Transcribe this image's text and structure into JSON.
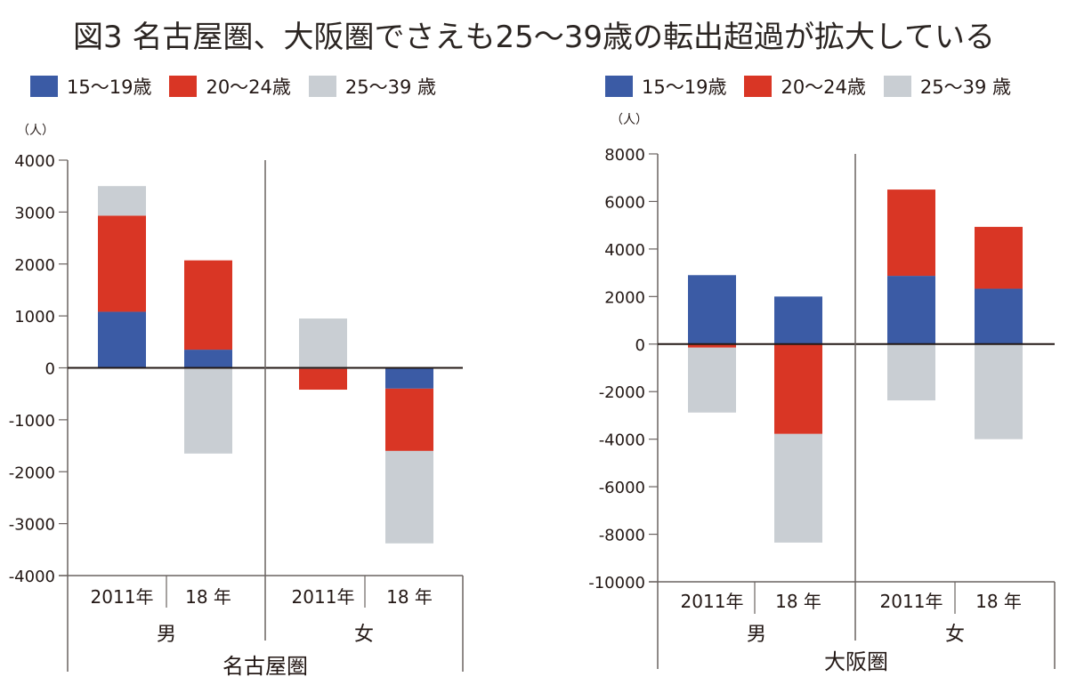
{
  "title": "図3 名古屋圏、大阪圏でさえも25〜39歳の転出超過が拡大している",
  "legend": [
    {
      "label": "15〜19歳",
      "color": "#3b5ba5"
    },
    {
      "label": "20〜24歳",
      "color": "#d93625"
    },
    {
      "label": "25〜39 歳",
      "color": "#c9ced3"
    }
  ],
  "chart_data": [
    {
      "type": "bar",
      "stacked": true,
      "title": "名古屋圏",
      "xlabel": "名古屋圏",
      "ylabel": "（人）",
      "ylim": [
        -4000,
        4000
      ],
      "yticks": [
        4000,
        3000,
        2000,
        1000,
        0,
        -1000,
        -2000,
        -3000,
        -4000
      ],
      "ytick_labels": [
        "4000",
        "3000",
        "2000",
        "1000",
        "0",
        "-1000",
        "-2000",
        "-3000",
        "-4000"
      ],
      "groups": [
        "男",
        "女"
      ],
      "categories": [
        "2011年",
        "18 年",
        "2011年",
        "18 年"
      ],
      "category_groups": [
        0,
        0,
        1,
        1
      ],
      "series": [
        {
          "name": "15〜19歳",
          "color": "#3b5ba5",
          "values": [
            1080,
            350,
            -20,
            -400
          ]
        },
        {
          "name": "20〜24歳",
          "color": "#d93625",
          "values": [
            1850,
            1720,
            -400,
            -1200
          ]
        },
        {
          "name": "25〜39 歳",
          "color": "#c9ced3",
          "values": [
            570,
            -1650,
            950,
            -1780
          ]
        }
      ],
      "legend_position": "top-left",
      "grid": false
    },
    {
      "type": "bar",
      "stacked": true,
      "title": "大阪圏",
      "xlabel": "大阪圏",
      "ylabel": "（人）",
      "ylim": [
        -10000,
        8000
      ],
      "yticks": [
        8000,
        6000,
        4000,
        2000,
        0,
        -2000,
        -4000,
        -6000,
        -8000,
        -10000
      ],
      "ytick_labels": [
        "8000",
        "6000",
        "4000",
        "2000",
        "0",
        "-2000",
        "-4000",
        "-6000",
        "-8000",
        "-10000"
      ],
      "groups": [
        "男",
        "女"
      ],
      "categories": [
        "2011年",
        "18 年",
        "2011年",
        "18 年"
      ],
      "category_groups": [
        0,
        0,
        1,
        1
      ],
      "series": [
        {
          "name": "15〜19歳",
          "color": "#3b5ba5",
          "values": [
            2900,
            2000,
            2870,
            2330
          ]
        },
        {
          "name": "20〜24歳",
          "color": "#d93625",
          "values": [
            -150,
            -3780,
            3630,
            2600
          ]
        },
        {
          "name": "25〜39 歳",
          "color": "#c9ced3",
          "values": [
            -2730,
            -4570,
            -2370,
            -4000
          ]
        }
      ],
      "legend_position": "top-right",
      "grid": false
    }
  ]
}
